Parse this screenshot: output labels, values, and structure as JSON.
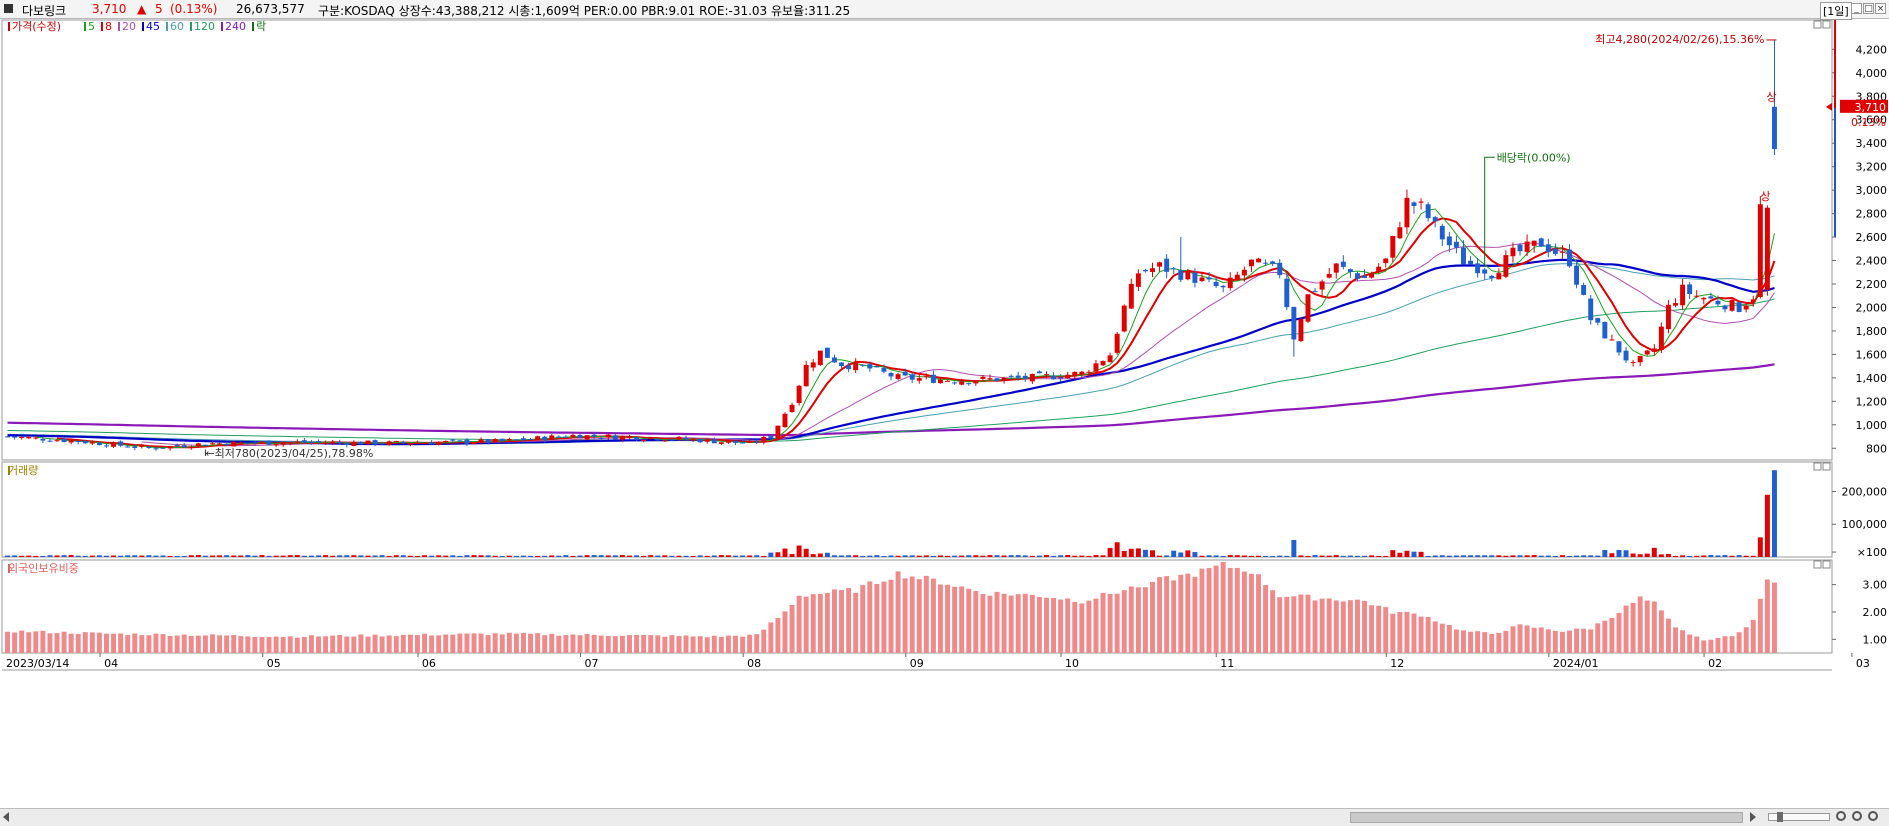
{
  "header": {
    "name": "다보링크",
    "price": "3,710",
    "change_arrow": "▲",
    "change": "5",
    "change_pct": "(0.13%)",
    "volume": "26,673,577",
    "info": "구분:KOSDAQ  상장수:43,388,212  시총:1,609억  PER:0.00  PBR:9.01  ROE:-31.03  유보율:311.25",
    "period_button": "[1일]"
  },
  "price_panel": {
    "legend": [
      {
        "label": "가격(수정)",
        "color": "#d40000"
      },
      {
        "label": "5",
        "color": "#1aa31a"
      },
      {
        "label": "8",
        "color": "#e00000"
      },
      {
        "label": "20",
        "color": "#b04fb0"
      },
      {
        "label": "45",
        "color": "#0000c8"
      },
      {
        "label": "60",
        "color": "#4aa0b0"
      },
      {
        "label": "120",
        "color": "#20a060"
      },
      {
        "label": "240",
        "color": "#8a1ab8"
      },
      {
        "label": "락",
        "color": "#107010"
      }
    ],
    "annotations": {
      "high": "최고4,280(2024/02/26),15.36%",
      "low": "←최저780(2023/04/25),78.98%",
      "dividend": "배당락(0.00%)",
      "limit_up_1": "상",
      "limit_up_2": "상"
    },
    "current_price_label": "3,710",
    "current_pct_label": "0.13%",
    "y_ticks": [
      "4,200",
      "4,000",
      "3,800",
      "3,600",
      "3,400",
      "3,200",
      "3,000",
      "2,800",
      "2,600",
      "2,400",
      "2,200",
      "2,000",
      "1,800",
      "1,600",
      "1,400",
      "1,200",
      "1,000",
      "800"
    ]
  },
  "volume_panel": {
    "title": "거래량",
    "y_ticks": [
      "200,000",
      "100,000",
      "×100"
    ]
  },
  "foreign_panel": {
    "title": "외국인보유비중",
    "y_ticks": [
      "3.00",
      "2.00",
      "1.00"
    ]
  },
  "x_axis_labels": [
    "2023/03/14",
    "04",
    "05",
    "06",
    "07",
    "08",
    "09",
    "10",
    "11",
    "12",
    "2024/01",
    "02",
    "03"
  ],
  "chart_data": {
    "type": "candlestick",
    "x_range": [
      "2023/03/14",
      "2024/03"
    ],
    "price_ylim": [
      700,
      4450
    ],
    "colors": {
      "up": "#e00000",
      "down": "#1f5fd0"
    },
    "price_ohlc_approx": [
      {
        "date": "2023/03/14",
        "open": 900,
        "high": 920,
        "low": 850,
        "close": 870
      },
      {
        "date": "2023/04/25",
        "open": 800,
        "high": 820,
        "low": 780,
        "close": 790
      },
      {
        "date": "2023/06",
        "open": 850,
        "high": 870,
        "low": 830,
        "close": 850
      },
      {
        "date": "2023/07",
        "open": 920,
        "high": 960,
        "low": 880,
        "close": 900
      },
      {
        "date": "2023/08",
        "open": 850,
        "high": 880,
        "low": 820,
        "close": 840
      },
      {
        "date": "2023/08 late",
        "open": 1500,
        "high": 1700,
        "low": 1400,
        "close": 1650
      },
      {
        "date": "2023/09",
        "open": 1400,
        "high": 1480,
        "low": 1350,
        "close": 1400
      },
      {
        "date": "2023/10",
        "open": 1450,
        "high": 1550,
        "low": 1380,
        "close": 1500
      },
      {
        "date": "2023/10 late",
        "open": 1800,
        "high": 2400,
        "low": 1700,
        "close": 2300
      },
      {
        "date": "2023/11",
        "open": 2200,
        "high": 2600,
        "low": 2000,
        "close": 2100
      },
      {
        "date": "2023/11 mid",
        "open": 1800,
        "high": 2100,
        "low": 1580,
        "close": 1750
      },
      {
        "date": "2023/12",
        "open": 2500,
        "high": 3050,
        "low": 2400,
        "close": 2950
      },
      {
        "date": "2024/01",
        "open": 2400,
        "high": 2620,
        "low": 2300,
        "close": 2500
      },
      {
        "date": "2024/01 late",
        "open": 1600,
        "high": 1700,
        "low": 1450,
        "close": 1500
      },
      {
        "date": "2024/02",
        "open": 2000,
        "high": 2250,
        "low": 1900,
        "close": 2100
      },
      {
        "date": "2024/02/23",
        "open": 2150,
        "high": 2870,
        "low": 2100,
        "close": 2850
      },
      {
        "date": "2024/02/26",
        "open": 3700,
        "high": 4280,
        "low": 3300,
        "close": 3710
      }
    ],
    "last_price": 3710,
    "high": {
      "value": 4280,
      "date": "2024/02/26",
      "pct": 15.36
    },
    "low": {
      "value": 780,
      "date": "2023/04/25",
      "pct": 78.98
    },
    "volume_ylim": [
      0,
      290000
    ],
    "foreign_ratio_ylim": [
      0.5,
      3.9
    ]
  }
}
